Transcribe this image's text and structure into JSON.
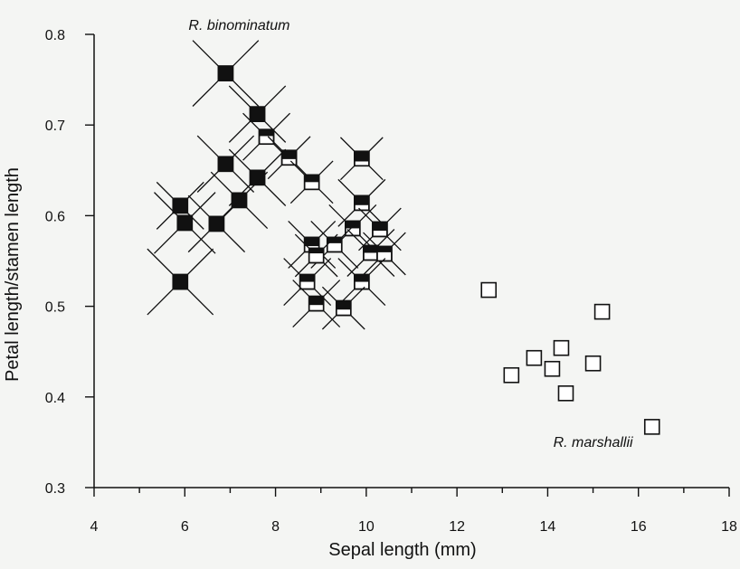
{
  "chart_data": {
    "type": "scatter",
    "title": "",
    "xlabel": "Sepal length (mm)",
    "ylabel": "Petal length/stamen length",
    "xlim": [
      4,
      18
    ],
    "ylim": [
      0.3,
      0.8
    ],
    "x_ticks": [
      4,
      6,
      8,
      10,
      12,
      14,
      16,
      18
    ],
    "x_tick_labels": [
      "4",
      "6",
      "8",
      "10",
      "12",
      "14",
      "16",
      "18"
    ],
    "y_ticks": [
      0.3,
      0.4,
      0.5,
      0.6,
      0.7,
      0.8
    ],
    "y_tick_labels": [
      "0.3",
      "0.4",
      "0.5",
      "0.6",
      "0.7",
      "0.8"
    ],
    "x_minor_step": 1,
    "grid": false,
    "annotations": [
      {
        "text": "R. binominatum",
        "x": 7.2,
        "y": 0.81
      },
      {
        "text": "R. marshallii",
        "x": 15.0,
        "y": 0.35
      }
    ],
    "series": [
      {
        "marker": "filled-square-with-cross",
        "points": [
          {
            "x": 6.9,
            "y": 0.757,
            "fill": 1.0,
            "cross": 1.4
          },
          {
            "x": 7.6,
            "y": 0.712,
            "fill": 1.0,
            "cross": 1.2
          },
          {
            "x": 6.9,
            "y": 0.657,
            "fill": 1.0,
            "cross": 1.2
          },
          {
            "x": 7.6,
            "y": 0.642,
            "fill": 1.0,
            "cross": 1.2
          },
          {
            "x": 7.2,
            "y": 0.617,
            "fill": 1.0,
            "cross": 1.2
          },
          {
            "x": 5.9,
            "y": 0.611,
            "fill": 1.0,
            "cross": 1.0
          },
          {
            "x": 6.0,
            "y": 0.592,
            "fill": 1.0,
            "cross": 1.3
          },
          {
            "x": 6.7,
            "y": 0.591,
            "fill": 1.0,
            "cross": 1.2
          },
          {
            "x": 5.9,
            "y": 0.527,
            "fill": 1.0,
            "cross": 1.4
          },
          {
            "x": 7.8,
            "y": 0.687,
            "fill": 0.45,
            "cross": 1.0
          },
          {
            "x": 8.3,
            "y": 0.664,
            "fill": 0.6,
            "cross": 0.9
          },
          {
            "x": 8.8,
            "y": 0.637,
            "fill": 0.5,
            "cross": 0.9
          },
          {
            "x": 9.9,
            "y": 0.663,
            "fill": 0.7,
            "cross": 0.9
          },
          {
            "x": 9.9,
            "y": 0.614,
            "fill": 0.65,
            "cross": 1.0
          },
          {
            "x": 9.7,
            "y": 0.586,
            "fill": 0.5,
            "cross": 1.0
          },
          {
            "x": 10.3,
            "y": 0.585,
            "fill": 0.6,
            "cross": 0.9
          },
          {
            "x": 8.8,
            "y": 0.568,
            "fill": 0.6,
            "cross": 1.0
          },
          {
            "x": 9.3,
            "y": 0.568,
            "fill": 0.4,
            "cross": 1.0
          },
          {
            "x": 8.9,
            "y": 0.556,
            "fill": 0.35,
            "cross": 0.9
          },
          {
            "x": 10.1,
            "y": 0.559,
            "fill": 0.5,
            "cross": 1.0
          },
          {
            "x": 10.4,
            "y": 0.558,
            "fill": 0.4,
            "cross": 0.9
          },
          {
            "x": 8.7,
            "y": 0.527,
            "fill": 0.5,
            "cross": 1.0
          },
          {
            "x": 9.9,
            "y": 0.527,
            "fill": 0.5,
            "cross": 1.0
          },
          {
            "x": 8.9,
            "y": 0.503,
            "fill": 0.6,
            "cross": 1.0
          },
          {
            "x": 9.5,
            "y": 0.498,
            "fill": 0.6,
            "cross": 0.9
          }
        ]
      },
      {
        "marker": "open-square",
        "points": [
          {
            "x": 12.7,
            "y": 0.518
          },
          {
            "x": 15.2,
            "y": 0.494
          },
          {
            "x": 14.3,
            "y": 0.454
          },
          {
            "x": 13.7,
            "y": 0.443
          },
          {
            "x": 15.0,
            "y": 0.437
          },
          {
            "x": 14.1,
            "y": 0.431
          },
          {
            "x": 13.2,
            "y": 0.424
          },
          {
            "x": 14.4,
            "y": 0.404
          },
          {
            "x": 16.3,
            "y": 0.367
          }
        ]
      }
    ]
  }
}
